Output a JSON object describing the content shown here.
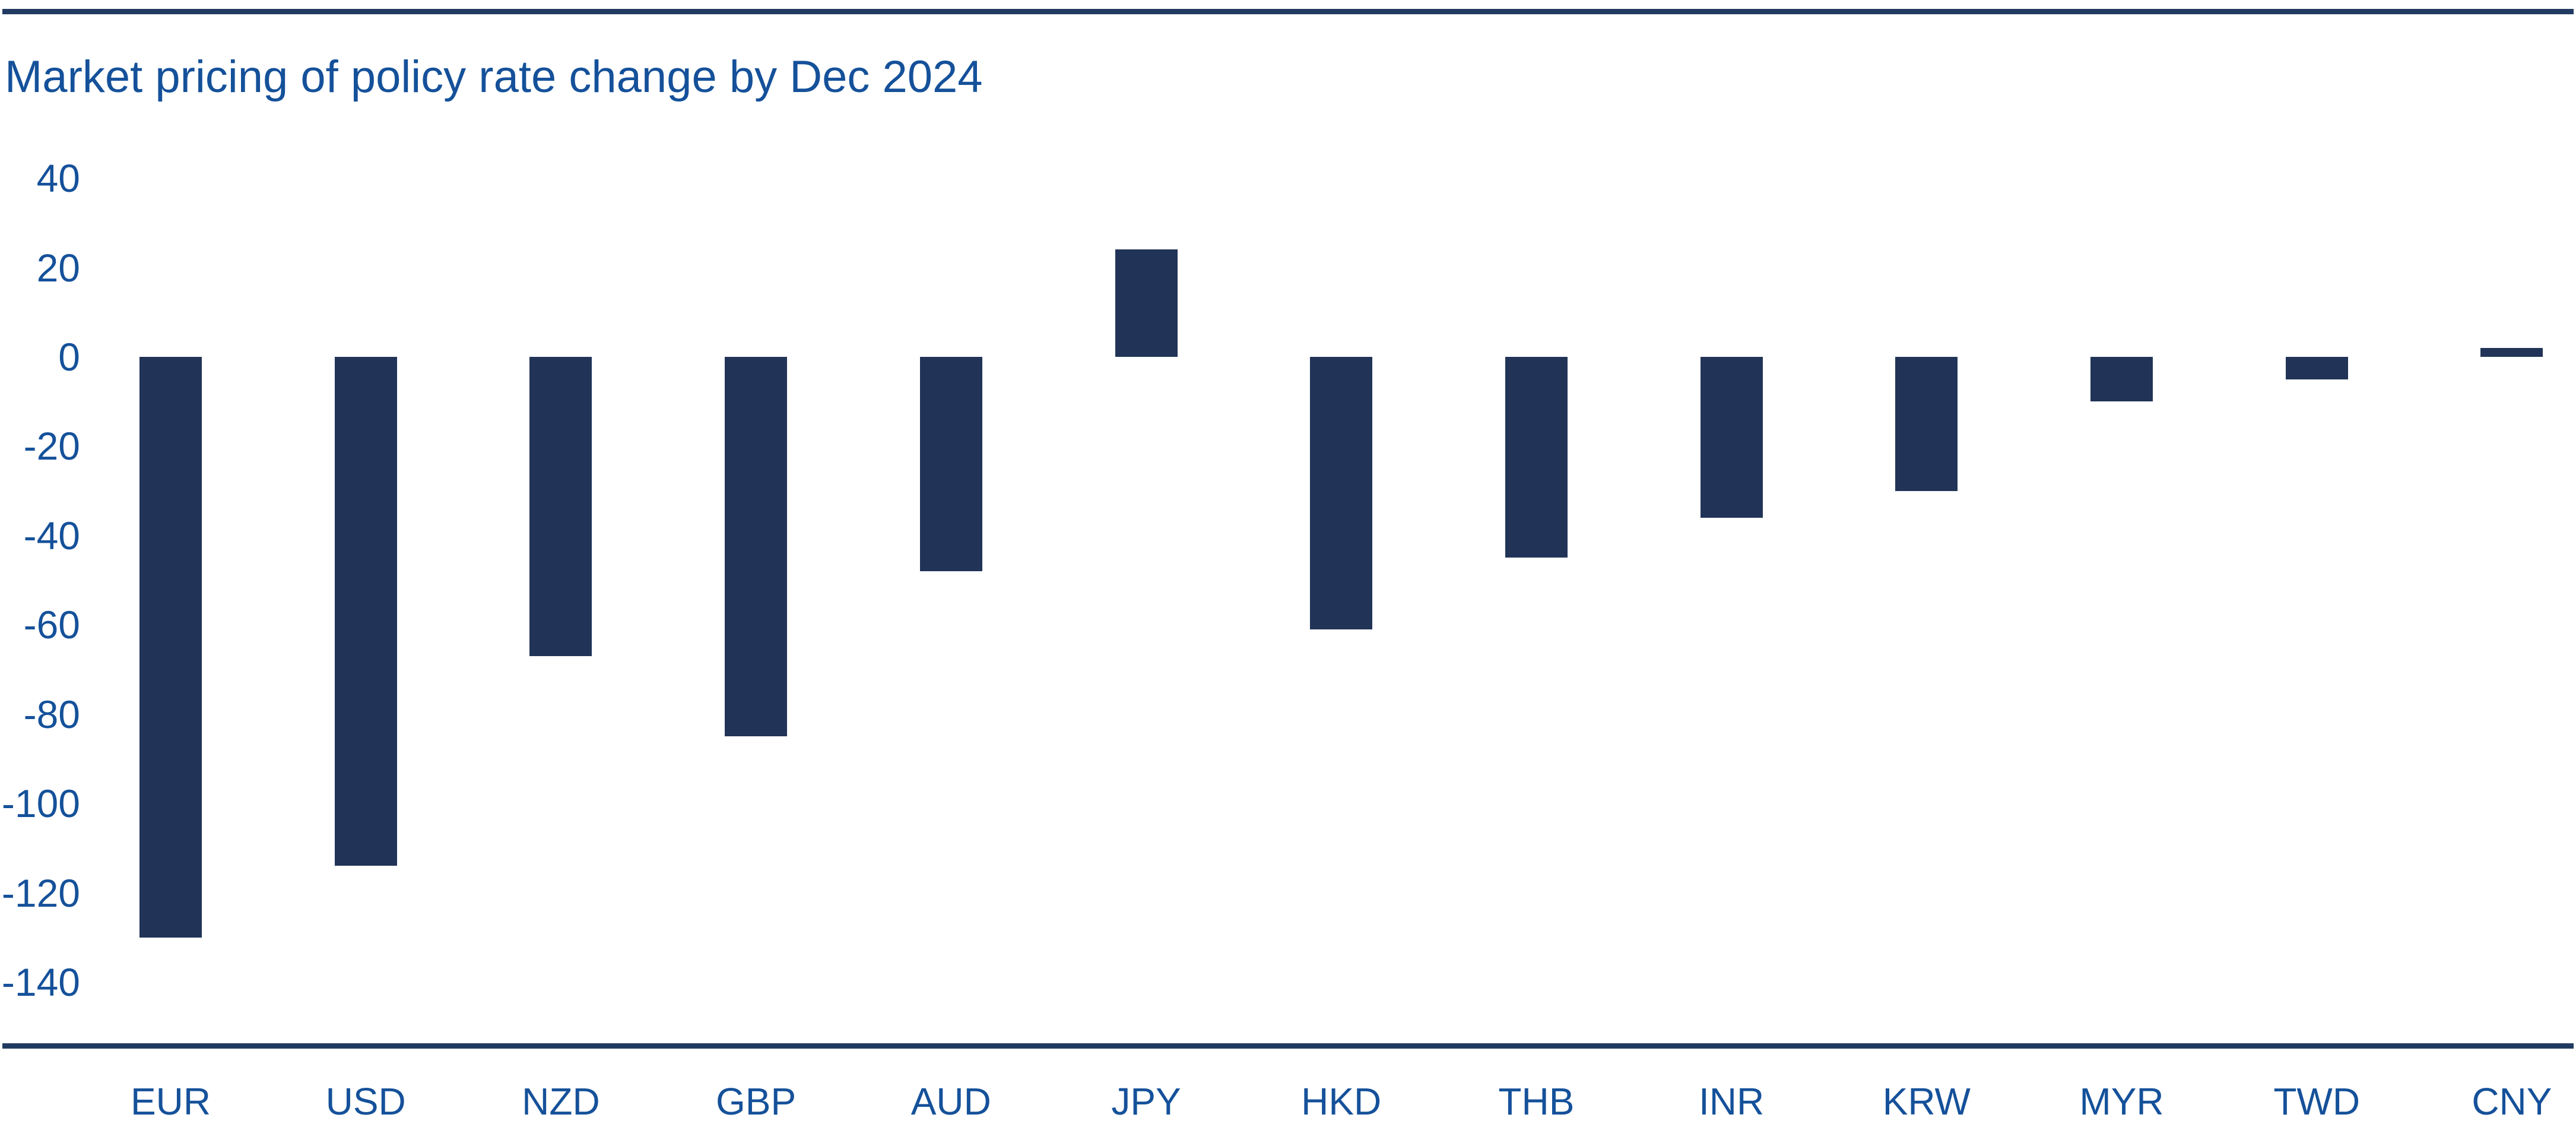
{
  "chart_data": {
    "type": "bar",
    "title": "Market pricing of policy rate change by Dec 2024",
    "categories": [
      "EUR",
      "USD",
      "NZD",
      "GBP",
      "AUD",
      "JPY",
      "HKD",
      "THB",
      "INR",
      "KRW",
      "MYR",
      "TWD",
      "CNY"
    ],
    "values": [
      -130,
      -114,
      -67,
      -85,
      -48,
      24,
      -61,
      -45,
      -36,
      -30,
      -10,
      -5,
      2
    ],
    "xlabel": "",
    "ylabel": "",
    "ylim": [
      -140,
      40
    ],
    "yticks": [
      40,
      20,
      0,
      -20,
      -40,
      -60,
      -80,
      -100,
      -120,
      -140
    ],
    "grid": false,
    "legend": false,
    "colors": {
      "bar": "#213458",
      "axis_line": "#213a5f",
      "top_border": "#213a5f",
      "text": "#15519a"
    }
  }
}
